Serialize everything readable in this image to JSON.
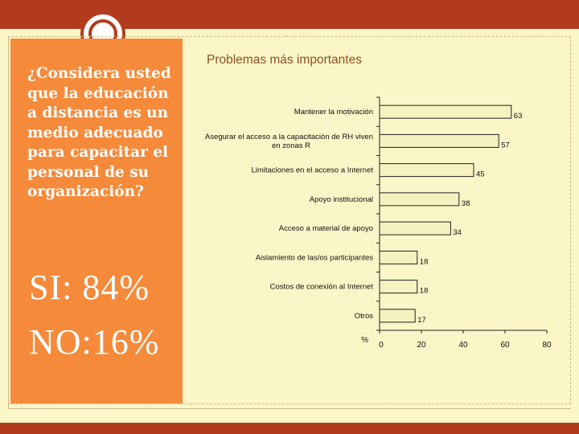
{
  "slide": {
    "question": "¿Considera usted que la educación a distancia es un medio adecuado para capacitar el personal de su organización?",
    "si": "SI: 84%",
    "no": "NO:16%"
  },
  "colors": {
    "band": "#b33b1d",
    "panel": "#f58a3b",
    "background": "#fbf6c7",
    "bar": "#f5f2c0",
    "bar_border": "#222222"
  },
  "chart_data": {
    "type": "bar",
    "orientation": "horizontal",
    "title": "Problemas más importantes",
    "categories": [
      "Mantener la motivación",
      "Asegurar el acceso a la capacitación de RH viven en zonas R",
      "Limitaciones en el acceso a Internet",
      "Apoyo institucional",
      "Acceso a material de apoyo",
      "Aislamiento de las/os participantes",
      "Costos de conexión al Internet",
      "Otros"
    ],
    "label_lines": [
      [
        "Mantener la motivación"
      ],
      [
        "Asegurar el acceso a la capacitación de RH viven",
        "en zonas R"
      ],
      [
        "Limitaciones en el acceso a Internet"
      ],
      [
        "Apoyo institucional"
      ],
      [
        "Acceso a material de apoyo"
      ],
      [
        "Aislamiento de las/os participantes"
      ],
      [
        "Costos de conexión al Internet"
      ],
      [
        "Otros"
      ]
    ],
    "values": [
      63,
      57,
      45,
      38,
      34,
      18,
      18,
      17
    ],
    "data_labels": [
      "63",
      "57",
      "45",
      "38",
      "34",
      "18",
      "18",
      "17"
    ],
    "xlim": [
      0,
      80
    ],
    "xticks": [
      "0",
      "20",
      "40",
      "60",
      "80"
    ],
    "xunit": "%",
    "grid": false,
    "legend": "none"
  }
}
